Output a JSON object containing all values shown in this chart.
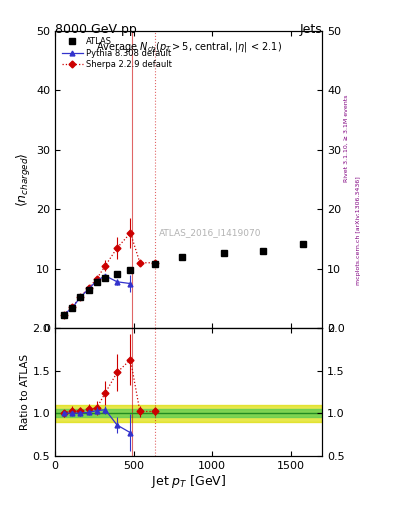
{
  "title_main": "8000 GeV pp",
  "title_right": "Jets",
  "plot_title": "Average $N_{ch}$($p_T$$>$5, central, $|\\eta|$ < 2.1)",
  "xlabel": "Jet $p_T$ [GeV]",
  "ylabel_main": "$\\langle n_{charged} \\rangle$",
  "ylabel_ratio": "Ratio to ATLAS",
  "watermark": "ATLAS_2016_I1419070",
  "right_label_top": "Rivet 3.1.10, ≥ 3.1M events",
  "right_label_bot": "mcplots.cern.ch [arXiv:1306.3436]",
  "atlas_x": [
    55,
    110,
    160,
    215,
    265,
    320,
    395,
    480,
    635,
    810,
    1075,
    1325,
    1575
  ],
  "atlas_y": [
    2.3,
    3.4,
    5.2,
    6.5,
    7.8,
    8.5,
    9.1,
    9.8,
    10.8,
    11.9,
    12.7,
    12.9,
    14.2
  ],
  "atlas_yerr": [
    0.1,
    0.1,
    0.15,
    0.2,
    0.2,
    0.25,
    0.25,
    0.3,
    0.35,
    0.0,
    0.0,
    0.0,
    0.0
  ],
  "pythia_x": [
    55,
    110,
    160,
    215,
    265,
    320,
    395,
    480
  ],
  "pythia_y": [
    2.3,
    3.4,
    5.2,
    6.6,
    8.0,
    8.8,
    7.8,
    7.5
  ],
  "pythia_yerr": [
    0.05,
    0.07,
    0.1,
    0.13,
    0.2,
    0.3,
    0.5,
    1.5
  ],
  "sherpa_x": [
    55,
    110,
    160,
    215,
    265,
    320,
    395,
    480,
    540,
    635
  ],
  "sherpa_y": [
    2.3,
    3.5,
    5.3,
    6.8,
    8.3,
    10.5,
    13.5,
    16.0,
    11.0,
    11.0
  ],
  "sherpa_yerr": [
    0.08,
    0.12,
    0.18,
    0.25,
    0.45,
    0.9,
    1.8,
    2.5,
    0.45,
    0.4
  ],
  "vline1": 490,
  "vline2": 635,
  "ratio_pythia_x": [
    55,
    110,
    160,
    215,
    265,
    320,
    395,
    480
  ],
  "ratio_pythia_y": [
    1.0,
    1.0,
    1.0,
    1.01,
    1.03,
    1.04,
    0.86,
    0.77
  ],
  "ratio_pythia_yerr": [
    0.02,
    0.03,
    0.03,
    0.03,
    0.04,
    0.05,
    0.09,
    0.22
  ],
  "ratio_sherpa_x": [
    55,
    110,
    160,
    215,
    265,
    320,
    395,
    480,
    540,
    635
  ],
  "ratio_sherpa_y": [
    1.0,
    1.03,
    1.02,
    1.05,
    1.06,
    1.24,
    1.48,
    1.63,
    1.02,
    1.02
  ],
  "ratio_sherpa_yerr": [
    0.04,
    0.05,
    0.05,
    0.06,
    0.08,
    0.14,
    0.22,
    0.3,
    0.06,
    0.05
  ],
  "ylim_main": [
    0,
    50
  ],
  "ylim_ratio": [
    0.5,
    2.0
  ],
  "xlim": [
    0,
    1700
  ],
  "atlas_color": "black",
  "pythia_color": "#3333cc",
  "sherpa_color": "#cc0000",
  "ref_band_color_green": "#55cc55",
  "ref_band_color_yellow": "#dddd00"
}
